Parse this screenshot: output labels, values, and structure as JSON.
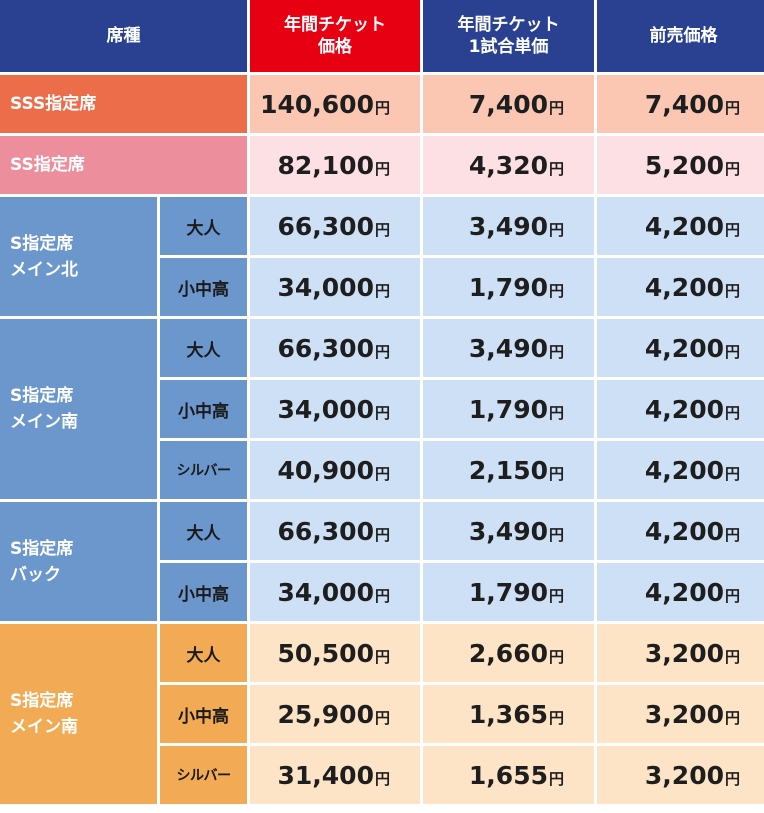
{
  "header": {
    "seat": "席種",
    "annual": "年間チケット\n価格",
    "per_game": "年間チケット\n1試合単価",
    "presale": "前売価格",
    "highlight_color": "#e60012",
    "header_color": "#2a4192"
  },
  "currency_unit": "円",
  "rows": {
    "sss": {
      "label": "SSS指定席",
      "annual": "140,600",
      "per_game": "7,400",
      "presale": "7,400"
    },
    "ss": {
      "label": "SS指定席",
      "annual": "82,100",
      "per_game": "4,320",
      "presale": "5,200"
    },
    "main_north": {
      "label": "S指定席\nメイン北",
      "adult": {
        "label": "大人",
        "annual": "66,300",
        "per_game": "3,490",
        "presale": "4,200"
      },
      "student": {
        "label": "小中高",
        "annual": "34,000",
        "per_game": "1,790",
        "presale": "4,200"
      }
    },
    "main_south": {
      "label": "S指定席\nメイン南",
      "adult": {
        "label": "大人",
        "annual": "66,300",
        "per_game": "3,490",
        "presale": "4,200"
      },
      "student": {
        "label": "小中高",
        "annual": "34,000",
        "per_game": "1,790",
        "presale": "4,200"
      },
      "senior": {
        "label": "シルバー",
        "annual": "40,900",
        "per_game": "2,150",
        "presale": "4,200"
      }
    },
    "back": {
      "label": "S指定席\nバック",
      "adult": {
        "label": "大人",
        "annual": "66,300",
        "per_game": "3,490",
        "presale": "4,200"
      },
      "student": {
        "label": "小中高",
        "annual": "34,000",
        "per_game": "1,790",
        "presale": "4,200"
      }
    },
    "main_south_2": {
      "label": "S指定席\nメイン南",
      "adult": {
        "label": "大人",
        "annual": "50,500",
        "per_game": "2,660",
        "presale": "3,200"
      },
      "student": {
        "label": "小中高",
        "annual": "25,900",
        "per_game": "1,365",
        "presale": "3,200"
      },
      "senior": {
        "label": "シルバー",
        "annual": "31,400",
        "per_game": "1,655",
        "presale": "3,200"
      }
    }
  }
}
